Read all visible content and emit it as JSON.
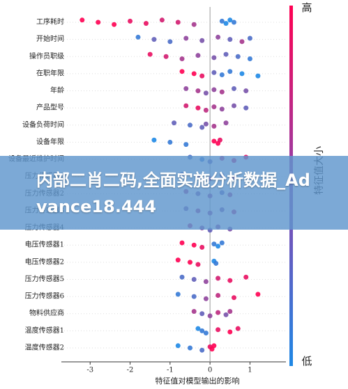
{
  "chart_data": {
    "type": "beeswarm",
    "xlabel": "特征值对模型输出的影响",
    "xlim": [
      -3.72,
      1.9
    ],
    "xticks": [
      -3,
      -2,
      -1,
      0,
      1
    ],
    "colorbar": {
      "title": "特征值大小",
      "high_label": "高",
      "low_label": "低",
      "low_color": "#1e88e5",
      "high_color": "#ff0052"
    },
    "series": [
      {
        "name": "工序耗时",
        "values": [
          -3.2,
          -2.8,
          -2.4,
          -2.0,
          -1.6,
          -1.2,
          -0.8,
          -0.4,
          0.3,
          0.4,
          0.5,
          0.6
        ],
        "feature_values": [
          1,
          1,
          1,
          0.9,
          0.9,
          0.8,
          0.8,
          0.6,
          0.1,
          0,
          0,
          0.1
        ]
      },
      {
        "name": "开始时间",
        "values": [
          -1.8,
          -1.4,
          -1.0,
          -0.6,
          -0.2,
          0.2,
          0.5,
          0.8,
          1.0
        ],
        "feature_values": [
          0.1,
          0.3,
          0.2,
          0.5,
          0.4,
          0.5,
          0.3,
          0.6,
          0.2
        ]
      },
      {
        "name": "操作员职级",
        "values": [
          -1.5,
          -1.1,
          -0.7,
          -0.3,
          0.1,
          0.4,
          0.7,
          1.0
        ],
        "feature_values": [
          0.9,
          0.8,
          0.6,
          0.5,
          0.4,
          0.3,
          0.2,
          0.1
        ]
      },
      {
        "name": "在职年限",
        "values": [
          -0.7,
          -0.4,
          -0.2,
          0.1,
          0.3,
          0.5,
          0.8,
          1.2
        ],
        "feature_values": [
          1,
          1,
          0.9,
          0.3,
          0.1,
          0.1,
          0,
          0
        ]
      },
      {
        "name": "年龄",
        "values": [
          -0.6,
          -0.3,
          -0.1,
          0.1,
          0.3,
          0.6,
          0.9
        ],
        "feature_values": [
          0.5,
          0.6,
          0.4,
          0.5,
          0.6,
          0.3,
          0.4
        ]
      },
      {
        "name": "产品型号",
        "values": [
          -0.6,
          -0.3,
          -0.1,
          0.1,
          0.3,
          0.6,
          0.9
        ],
        "feature_values": [
          0.8,
          0.9,
          0.7,
          0.6,
          0.5,
          0.4,
          0.3
        ]
      },
      {
        "name": "设备负荷时间",
        "values": [
          -0.9,
          -0.5,
          -0.2,
          -0.1,
          0.1,
          0.4
        ],
        "feature_values": [
          0.3,
          0.2,
          0.3,
          0.4,
          0.6,
          0.5
        ]
      },
      {
        "name": "设备年限",
        "values": [
          -1.4,
          -1.0,
          -0.6,
          0.1,
          0.2,
          0.25
        ],
        "feature_values": [
          0,
          0.1,
          0.1,
          1,
          1,
          0.9
        ]
      },
      {
        "name": "设备最近维护时间",
        "values": [
          -0.5,
          -0.2,
          0,
          0.3,
          0.6,
          0.9
        ],
        "feature_values": [
          0.2,
          0.1,
          0.3,
          0.7,
          0.8,
          0.9
        ]
      },
      {
        "name": "压力传感器1",
        "values": [
          -0.7,
          -0.3,
          0,
          0.3,
          0.6
        ],
        "feature_values": [
          0.3,
          0.5,
          0.6,
          0.4,
          0.7
        ]
      },
      {
        "name": "压力传感器2",
        "values": [
          -0.6,
          -0.3,
          0,
          0.3,
          0.5
        ],
        "feature_values": [
          0.6,
          0.4,
          0.5,
          0.3,
          0.6
        ]
      },
      {
        "name": "压力传感器3",
        "values": [
          -0.6,
          -0.3,
          0,
          0.3,
          0.6
        ],
        "feature_values": [
          0.4,
          0.6,
          0.5,
          0.4,
          0.7
        ]
      },
      {
        "name": "压力传感器4",
        "values": [
          -0.5,
          -0.2,
          0,
          0.2,
          0.5
        ],
        "feature_values": [
          0.7,
          0.5,
          0.3,
          0.5,
          0.4
        ]
      },
      {
        "name": "电压传感器1",
        "values": [
          -0.7,
          -0.4,
          -0.2,
          0.1,
          0.2,
          0.3
        ],
        "feature_values": [
          1,
          1,
          0.9,
          0.1,
          0,
          0.1
        ]
      },
      {
        "name": "电压传感器2",
        "values": [
          -0.8,
          -0.5,
          -0.3,
          0.1,
          0.15
        ],
        "feature_values": [
          1,
          1,
          0.9,
          0,
          0.1
        ]
      },
      {
        "name": "压力传感器5",
        "values": [
          -0.7,
          -0.4,
          -0.1,
          0.2,
          0.5,
          0.9
        ],
        "feature_values": [
          0.2,
          0.3,
          0.5,
          0.8,
          0.9,
          0.9
        ]
      },
      {
        "name": "压力传感器6",
        "values": [
          -0.8,
          -0.4,
          -0.1,
          0.2,
          0.6,
          1.2
        ],
        "feature_values": [
          0.1,
          0.2,
          0.5,
          0.7,
          0.9,
          1
        ]
      },
      {
        "name": "物料供应商",
        "values": [
          -0.4,
          -0.2,
          0,
          0.2,
          0.4,
          0.5
        ],
        "feature_values": [
          0.6,
          0.3,
          0.5,
          0.7,
          0.4,
          0.6
        ]
      },
      {
        "name": "温度传感器1",
        "values": [
          -0.3,
          -0.2,
          -0.1,
          0.2,
          0.5,
          0.7
        ],
        "feature_values": [
          0,
          0.1,
          0.1,
          0.9,
          1,
          0.9
        ]
      },
      {
        "name": "温度传感器2",
        "values": [
          -0.8,
          -0.5,
          -0.2,
          0,
          0.05,
          0.1
        ],
        "feature_values": [
          0,
          0.1,
          0.2,
          0.9,
          1,
          1
        ]
      }
    ]
  },
  "overlay_text": "内部二肖二码,全面实施分析数据_Advance18.444"
}
